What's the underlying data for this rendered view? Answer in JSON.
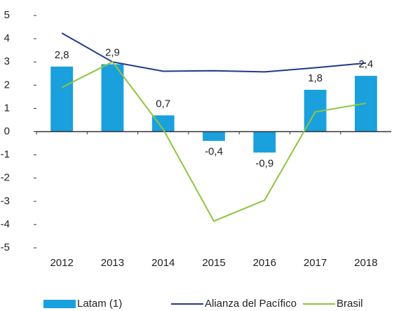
{
  "chart_data": {
    "type": "bar_line",
    "categories": [
      "2012",
      "2013",
      "2014",
      "2015",
      "2016",
      "2017",
      "2018"
    ],
    "series": [
      {
        "name": "Latam (1)",
        "type": "bar",
        "color": "#1aa0dd",
        "values": [
          2.8,
          2.9,
          0.7,
          -0.4,
          -0.9,
          1.8,
          2.4
        ],
        "value_labels": [
          "2,8",
          "2,9",
          "0,7",
          "-0,4",
          "-0,9",
          "1,8",
          "2,4"
        ]
      },
      {
        "name": "Alianza del Pacífico",
        "type": "line",
        "color": "#1f3a8a",
        "values": [
          4.24,
          3.0,
          2.6,
          2.62,
          2.57,
          2.75,
          2.95
        ]
      },
      {
        "name": "Brasil",
        "type": "line",
        "color": "#8dc63f",
        "values": [
          1.9,
          3.0,
          0.1,
          -3.85,
          -2.95,
          0.85,
          1.22
        ]
      }
    ],
    "ylim": [
      -5,
      5
    ],
    "yticks": [
      -5,
      -4,
      -3,
      -2,
      -1,
      0,
      1,
      2,
      3,
      4,
      5
    ],
    "grid": false,
    "legend": "bottom"
  }
}
